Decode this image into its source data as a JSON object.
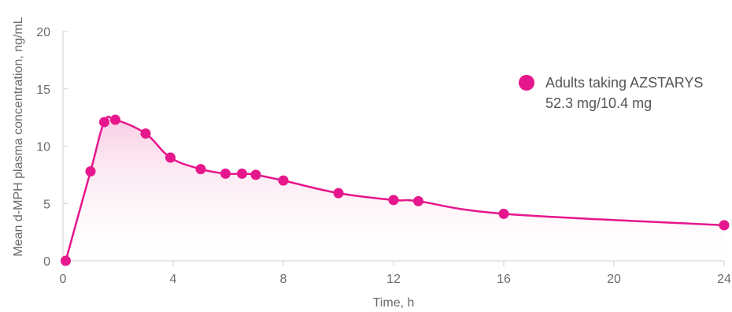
{
  "chart_data": {
    "type": "line",
    "xlabel": "Time, h",
    "ylabel": "Mean d-MPH plasma concentration, ng/mL",
    "xlim": [
      0,
      24
    ],
    "ylim": [
      0,
      20
    ],
    "xticks": [
      0,
      4,
      8,
      12,
      16,
      20,
      24
    ],
    "yticks": [
      0,
      5,
      10,
      15,
      20
    ],
    "grid": false,
    "legend_position": "top-right",
    "series": [
      {
        "name": "Adults taking AZSTARYS",
        "name_line2": "52.3 mg/10.4 mg",
        "color": "#e6168c",
        "x": [
          0.1,
          1,
          1.5,
          1.9,
          3,
          3.9,
          5,
          5.9,
          6.5,
          7,
          8,
          10,
          12,
          12.9,
          16,
          24
        ],
        "y": [
          0,
          7.8,
          12.1,
          12.3,
          11.1,
          9.0,
          8.0,
          7.6,
          7.6,
          7.5,
          7.0,
          5.9,
          5.3,
          5.2,
          4.1,
          3.1
        ]
      }
    ]
  }
}
